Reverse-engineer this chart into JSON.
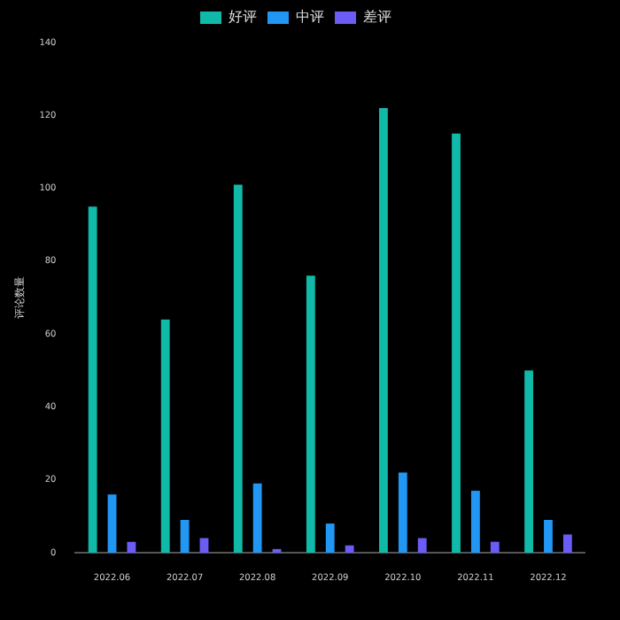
{
  "chart_data": {
    "type": "bar",
    "ylabel": "评论数量",
    "categories": [
      "2022.06",
      "2022.07",
      "2022.08",
      "2022.09",
      "2022.10",
      "2022.11",
      "2022.12"
    ],
    "series": [
      {
        "name": "好评",
        "color": "#10b9a8",
        "values": [
          95,
          64,
          101,
          76,
          122,
          115,
          50
        ]
      },
      {
        "name": "中评",
        "color": "#2196f3",
        "values": [
          16,
          9,
          19,
          8,
          22,
          17,
          9
        ]
      },
      {
        "name": "差评",
        "color": "#6a5cf5",
        "values": [
          3,
          4,
          1,
          2,
          4,
          3,
          5
        ]
      }
    ],
    "ylim": [
      0,
      140
    ],
    "yticks": [
      0,
      20,
      40,
      60,
      80,
      100,
      120,
      140
    ],
    "grid": false,
    "legend": "top"
  }
}
